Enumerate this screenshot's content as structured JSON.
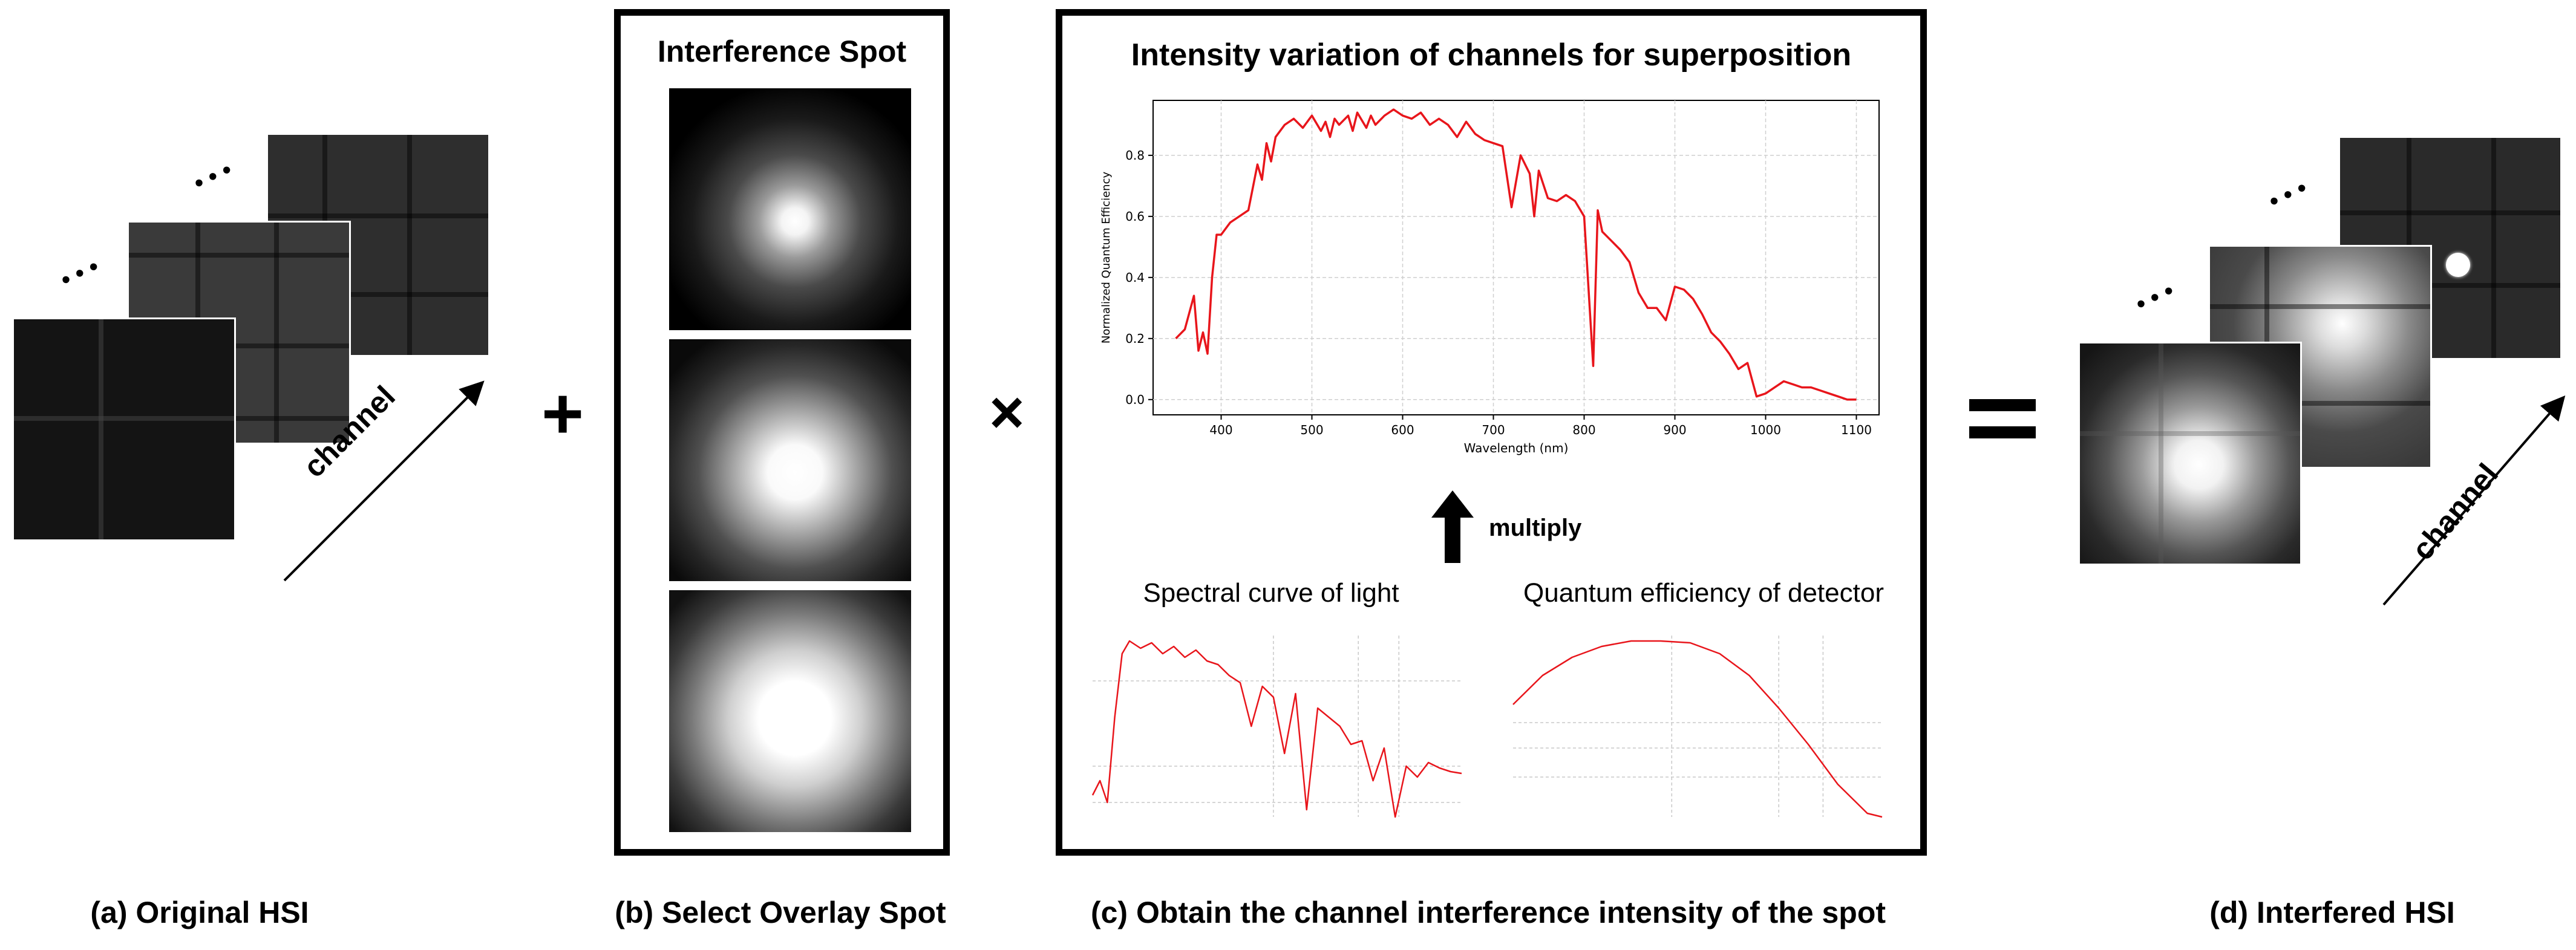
{
  "captions": {
    "a": "(a) Original HSI",
    "b": "(b) Select Overlay Spot",
    "c": "(c) Obtain the channel interference intensity of the spot",
    "d": "(d) Interfered HSI"
  },
  "operators": {
    "plus": "+",
    "times": "×",
    "equals": "="
  },
  "panel_a": {
    "axis_label": "channel",
    "ellipsis": "• • •"
  },
  "panel_b": {
    "title": "Interference Spot",
    "spots": [
      "spot-small",
      "spot-medium",
      "spot-large"
    ]
  },
  "panel_c": {
    "title": "Intensity variation of channels for superposition",
    "multiply_label": "multiply",
    "left_sub": "Spectral curve of light",
    "right_sub": "Quantum efficiency of detector"
  },
  "panel_d": {
    "axis_label": "channel",
    "ellipsis": "• • •"
  },
  "chart_data": [
    {
      "type": "line",
      "title": "Intensity variation of channels for superposition",
      "xlabel": "Wavelength (nm)",
      "ylabel": "Normalized Quantum Efficiency",
      "xlim": [
        325,
        1125
      ],
      "ylim": [
        -0.05,
        0.98
      ],
      "xticks": [
        400,
        500,
        600,
        700,
        800,
        900,
        1000,
        1100
      ],
      "yticks": [
        0.0,
        0.2,
        0.4,
        0.6,
        0.8
      ],
      "grid": true,
      "color": "#e8151b",
      "series": [
        {
          "name": "normalized efficiency",
          "x": [
            350,
            360,
            370,
            375,
            380,
            385,
            390,
            395,
            400,
            410,
            420,
            430,
            440,
            445,
            450,
            455,
            460,
            470,
            480,
            490,
            500,
            510,
            515,
            520,
            525,
            530,
            540,
            545,
            550,
            560,
            565,
            570,
            580,
            590,
            600,
            610,
            620,
            630,
            640,
            650,
            660,
            670,
            680,
            690,
            700,
            710,
            720,
            730,
            740,
            745,
            750,
            760,
            770,
            780,
            790,
            800,
            810,
            815,
            820,
            830,
            840,
            850,
            860,
            870,
            880,
            890,
            900,
            910,
            920,
            930,
            940,
            950,
            960,
            970,
            980,
            990,
            1000,
            1010,
            1020,
            1030,
            1040,
            1050,
            1060,
            1070,
            1080,
            1090,
            1100
          ],
          "y": [
            0.2,
            0.23,
            0.34,
            0.16,
            0.22,
            0.15,
            0.4,
            0.54,
            0.54,
            0.58,
            0.6,
            0.62,
            0.77,
            0.72,
            0.84,
            0.78,
            0.86,
            0.9,
            0.92,
            0.89,
            0.93,
            0.88,
            0.91,
            0.86,
            0.92,
            0.9,
            0.93,
            0.88,
            0.94,
            0.89,
            0.93,
            0.9,
            0.93,
            0.95,
            0.93,
            0.92,
            0.94,
            0.9,
            0.92,
            0.9,
            0.86,
            0.91,
            0.87,
            0.85,
            0.84,
            0.83,
            0.63,
            0.8,
            0.74,
            0.6,
            0.75,
            0.66,
            0.65,
            0.67,
            0.65,
            0.6,
            0.11,
            0.62,
            0.55,
            0.52,
            0.49,
            0.45,
            0.35,
            0.3,
            0.3,
            0.26,
            0.37,
            0.36,
            0.33,
            0.28,
            0.22,
            0.19,
            0.15,
            0.1,
            0.12,
            0.01,
            0.02,
            0.04,
            0.06,
            0.05,
            0.04,
            0.04,
            0.03,
            0.02,
            0.01,
            0.0,
            0.0
          ]
        }
      ]
    },
    {
      "type": "line",
      "title": "Spectral curve of light",
      "color": "#e8151b",
      "series": [
        {
          "name": "light spectrum",
          "x": [
            0,
            2,
            4,
            6,
            8,
            10,
            13,
            16,
            19,
            22,
            25,
            28,
            31,
            34,
            37,
            40,
            43,
            46,
            49,
            52,
            55,
            58,
            61,
            64,
            67,
            70,
            73,
            76,
            79,
            82,
            85,
            88,
            91,
            94,
            97,
            100
          ],
          "y": [
            0.12,
            0.2,
            0.08,
            0.55,
            0.9,
            0.97,
            0.93,
            0.96,
            0.9,
            0.94,
            0.88,
            0.92,
            0.86,
            0.84,
            0.78,
            0.74,
            0.5,
            0.72,
            0.66,
            0.35,
            0.68,
            0.04,
            0.6,
            0.55,
            0.5,
            0.4,
            0.42,
            0.2,
            0.38,
            0.0,
            0.28,
            0.22,
            0.3,
            0.27,
            0.25,
            0.24
          ]
        }
      ]
    },
    {
      "type": "line",
      "title": "Quantum efficiency of detector",
      "color": "#e8151b",
      "series": [
        {
          "name": "detector qe",
          "x": [
            0,
            8,
            16,
            24,
            32,
            40,
            48,
            56,
            64,
            72,
            80,
            88,
            96,
            100
          ],
          "y": [
            0.62,
            0.78,
            0.88,
            0.94,
            0.97,
            0.97,
            0.96,
            0.9,
            0.78,
            0.6,
            0.4,
            0.18,
            0.02,
            0.0
          ]
        }
      ]
    }
  ]
}
